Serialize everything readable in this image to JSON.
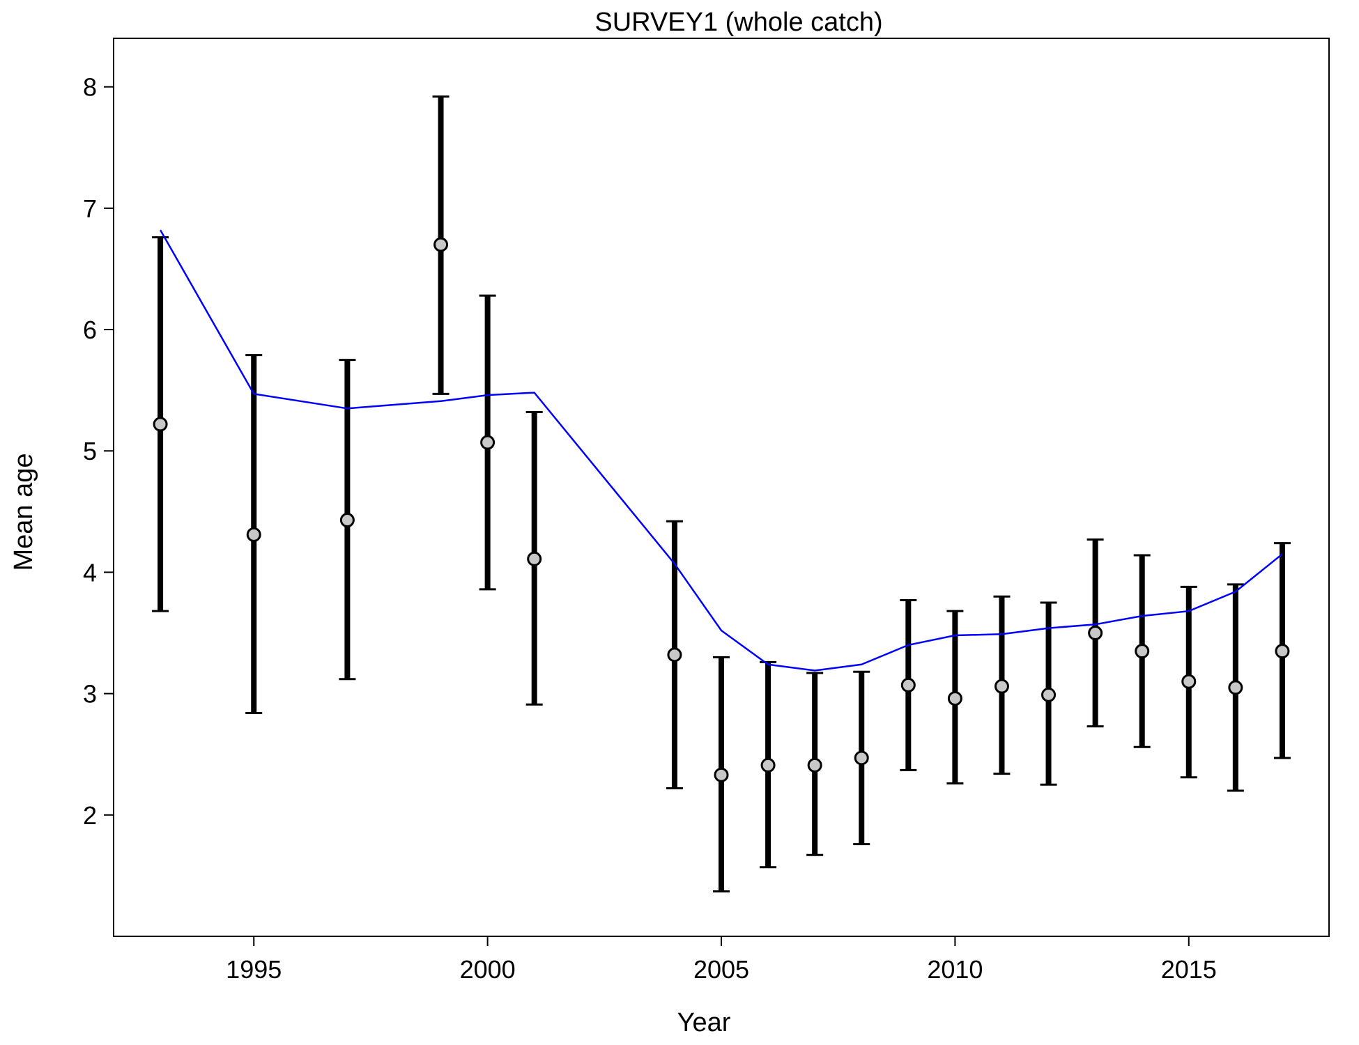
{
  "chart_data": {
    "type": "line",
    "title": "SURVEY1 (whole catch)",
    "xlabel": "Year",
    "ylabel": "Mean age",
    "xlim": [
      1992.0,
      2018.0
    ],
    "ylim": [
      1.0,
      8.4
    ],
    "x_ticks": [
      1995,
      2000,
      2005,
      2010,
      2015
    ],
    "y_ticks": [
      2,
      3,
      4,
      5,
      6,
      7,
      8
    ],
    "grid": false,
    "colors": {
      "expected_line": "#0000ff",
      "error_bar": "#000000",
      "point_fill": "#c8c8c8",
      "point_stroke": "#000000"
    },
    "observed": [
      {
        "year": 1993,
        "mean": 5.22,
        "lower": 3.68,
        "upper": 6.76
      },
      {
        "year": 1995,
        "mean": 4.31,
        "lower": 2.84,
        "upper": 5.79
      },
      {
        "year": 1997,
        "mean": 4.43,
        "lower": 3.12,
        "upper": 5.75
      },
      {
        "year": 1999,
        "mean": 6.7,
        "lower": 5.47,
        "upper": 7.92
      },
      {
        "year": 2000,
        "mean": 5.07,
        "lower": 3.86,
        "upper": 6.28
      },
      {
        "year": 2001,
        "mean": 4.11,
        "lower": 2.91,
        "upper": 5.32
      },
      {
        "year": 2004,
        "mean": 3.32,
        "lower": 2.22,
        "upper": 4.42
      },
      {
        "year": 2005,
        "mean": 2.33,
        "lower": 1.37,
        "upper": 3.3
      },
      {
        "year": 2006,
        "mean": 2.41,
        "lower": 1.57,
        "upper": 3.26
      },
      {
        "year": 2007,
        "mean": 2.41,
        "lower": 1.67,
        "upper": 3.17
      },
      {
        "year": 2008,
        "mean": 2.47,
        "lower": 1.76,
        "upper": 3.18
      },
      {
        "year": 2009,
        "mean": 3.07,
        "lower": 2.37,
        "upper": 3.77
      },
      {
        "year": 2010,
        "mean": 2.96,
        "lower": 2.26,
        "upper": 3.68
      },
      {
        "year": 2011,
        "mean": 3.06,
        "lower": 2.34,
        "upper": 3.8
      },
      {
        "year": 2012,
        "mean": 2.99,
        "lower": 2.25,
        "upper": 3.75
      },
      {
        "year": 2013,
        "mean": 3.5,
        "lower": 2.73,
        "upper": 4.27
      },
      {
        "year": 2014,
        "mean": 3.35,
        "lower": 2.56,
        "upper": 4.14
      },
      {
        "year": 2015,
        "mean": 3.1,
        "lower": 2.31,
        "upper": 3.88
      },
      {
        "year": 2016,
        "mean": 3.05,
        "lower": 2.2,
        "upper": 3.9
      },
      {
        "year": 2017,
        "mean": 3.35,
        "lower": 2.47,
        "upper": 4.24
      }
    ],
    "expected": {
      "x": [
        1993,
        1995,
        1997,
        1999,
        2000,
        2001,
        2004,
        2005,
        2006,
        2007,
        2008,
        2009,
        2010,
        2011,
        2012,
        2013,
        2014,
        2015,
        2016,
        2017
      ],
      "y": [
        6.82,
        5.47,
        5.35,
        5.41,
        5.46,
        5.48,
        4.07,
        3.52,
        3.24,
        3.19,
        3.24,
        3.4,
        3.48,
        3.49,
        3.54,
        3.57,
        3.64,
        3.68,
        3.84,
        4.15
      ]
    }
  }
}
